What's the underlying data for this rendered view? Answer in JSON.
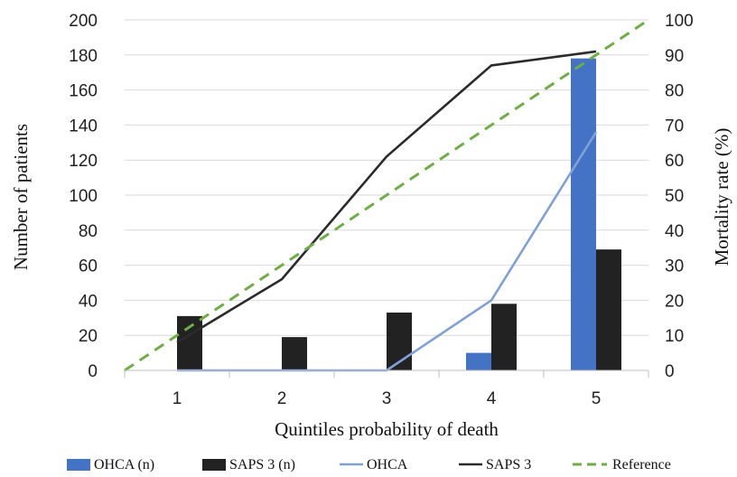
{
  "chart_data": {
    "type": "bar",
    "categories": [
      "1",
      "2",
      "3",
      "4",
      "5"
    ],
    "xlabel": "Quintiles probability of death",
    "ylabel": "Number of patients",
    "y2label": "Mortality rate (%)",
    "ylim": [
      0,
      200
    ],
    "y2lim": [
      0,
      100
    ],
    "yticks": [
      "0",
      "20",
      "40",
      "60",
      "80",
      "100",
      "120",
      "140",
      "160",
      "180",
      "200"
    ],
    "y2ticks": [
      "0",
      "10",
      "20",
      "30",
      "40",
      "50",
      "60",
      "70",
      "80",
      "90",
      "100"
    ],
    "grid": "horizontal",
    "legend_position": "bottom",
    "series": [
      {
        "name": "OHCA (n)",
        "kind": "bar",
        "axis": "left",
        "color": "#4472C4",
        "values": [
          0,
          0,
          0,
          10,
          178
        ]
      },
      {
        "name": "SAPS 3 (n)",
        "kind": "bar",
        "axis": "left",
        "color": "#222222",
        "values": [
          31,
          19,
          33,
          38,
          69
        ]
      },
      {
        "name": "OHCA",
        "kind": "line",
        "axis": "right",
        "color": "#7FA0D9",
        "values": [
          0,
          0,
          0,
          20,
          68
        ]
      },
      {
        "name": "SAPS 3",
        "kind": "line",
        "axis": "right",
        "color": "#2b2b2b",
        "values": [
          8,
          26,
          61,
          87,
          91
        ]
      },
      {
        "name": "Reference",
        "kind": "dashed-line",
        "axis": "right",
        "color": "#6FAD47",
        "x": [
          0.5,
          5.5
        ],
        "values": [
          0,
          100
        ]
      }
    ]
  }
}
